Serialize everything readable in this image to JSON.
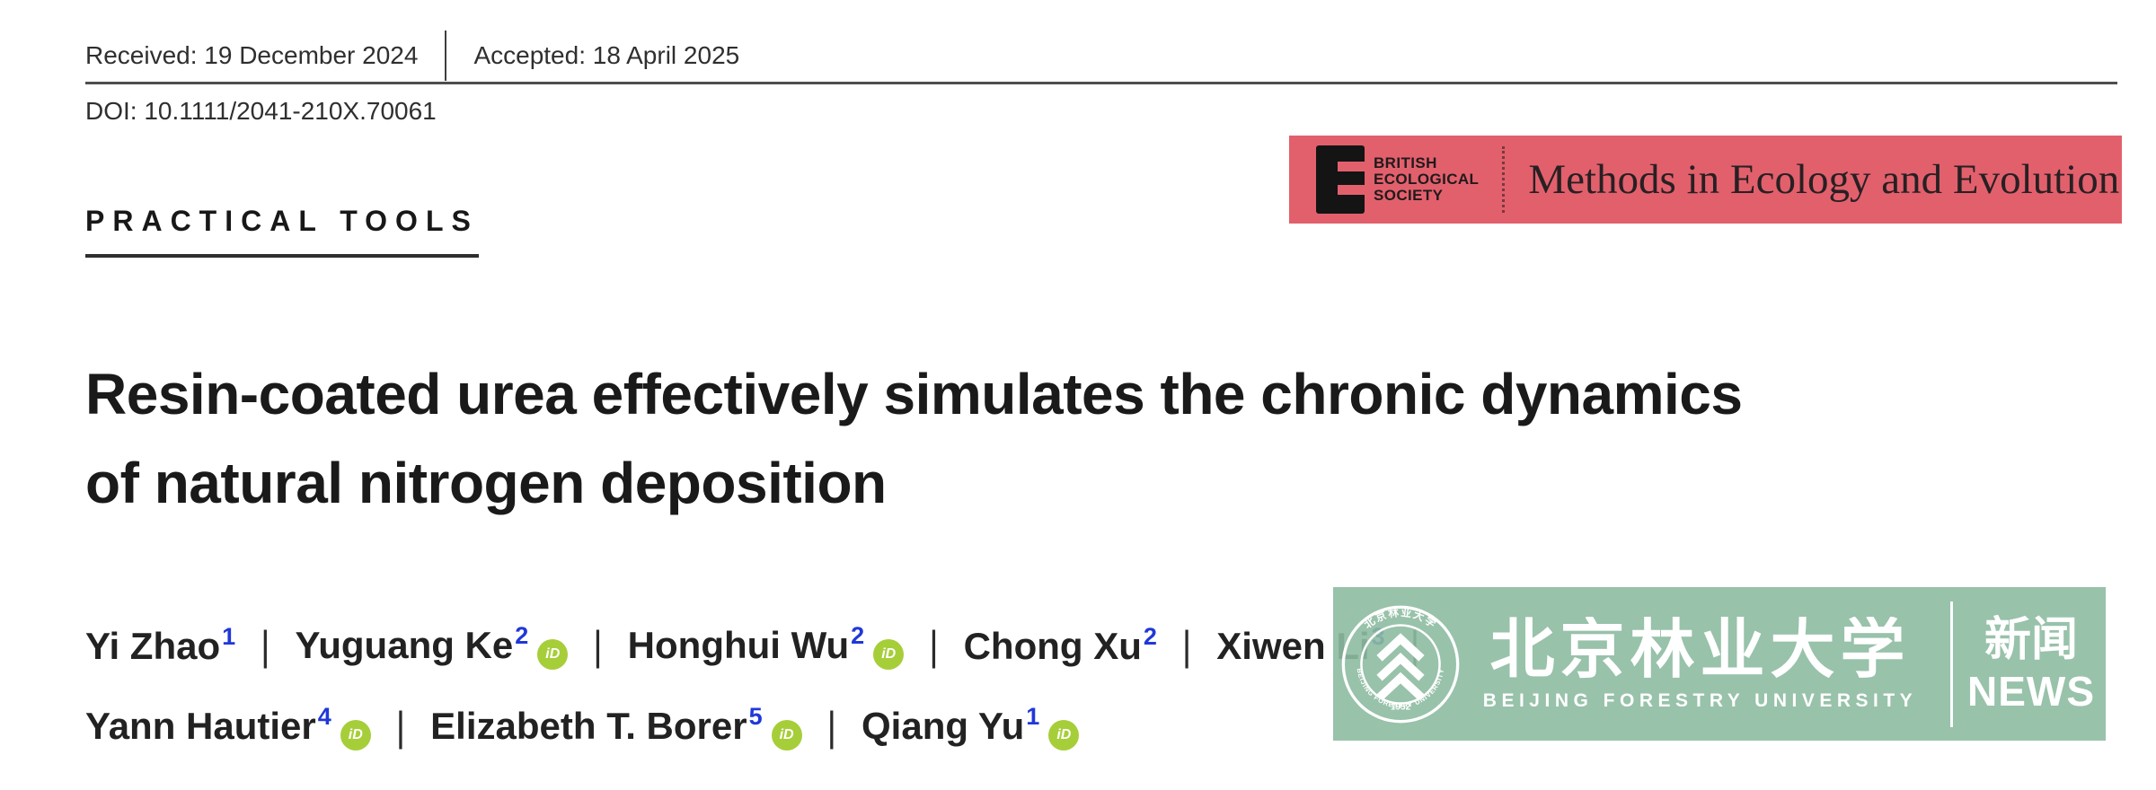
{
  "header": {
    "received": "Received: 19 December 2024",
    "accepted": "Accepted: 18 April 2025",
    "doi": "DOI: 10.1111/2041-210X.70061"
  },
  "article": {
    "category": "PRACTICAL TOOLS",
    "title": "Resin-coated urea effectively simulates the chronic dynamics of natural nitrogen deposition",
    "title_lines": [
      "Resin-coated urea effectively simulates the chronic dynamics",
      "of natural nitrogen deposition"
    ]
  },
  "journal": {
    "name": "Methods in Ecology and Evolution",
    "society_lines": [
      "BRITISH",
      "ECOLOGICAL",
      "SOCIETY"
    ],
    "logo_letter": "E"
  },
  "authors": {
    "separator": "|",
    "orcid_label": "iD",
    "rows": [
      {
        "entries": [
          {
            "name": "Yi Zhao",
            "sup": "1",
            "orcid": false
          },
          {
            "name": "Yuguang Ke",
            "sup": "2",
            "orcid": true
          },
          {
            "name": "Honghui Wu",
            "sup": "2",
            "orcid": true
          },
          {
            "name": "Chong Xu",
            "sup": "2",
            "orcid": false
          },
          {
            "name": "Xiwen Li",
            "sup": "3",
            "orcid": false
          }
        ],
        "trailing_separator": true
      },
      {
        "entries": [
          {
            "name": "Yann Hautier",
            "sup": "4",
            "orcid": true
          },
          {
            "name": "Elizabeth T. Borer",
            "sup": "5",
            "orcid": true
          },
          {
            "name": "Qiang Yu",
            "sup": "1",
            "orcid": true
          }
        ],
        "trailing_separator": false
      }
    ]
  },
  "watermark": {
    "university_cjk": "北京林业大学",
    "university_en": "BEIJING FORESTRY UNIVERSITY",
    "news_cjk": "新闻",
    "news_en": "NEWS",
    "seal_top_cjk": "北京林业大学",
    "seal_bottom_en": "BEIJING FORESTRY UNIVERSITY",
    "seal_year": "1952"
  },
  "colors": {
    "banner_bg": "#e2606c",
    "watermark_bg": "rgba(141,187,161,0.90)",
    "orcid_green": "#a6ce39",
    "superscript_blue": "#2038d8"
  }
}
